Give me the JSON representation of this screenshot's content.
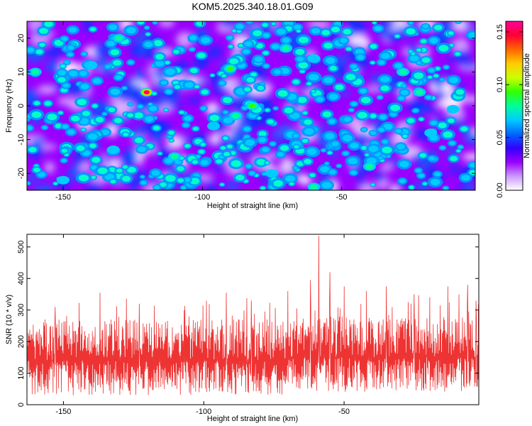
{
  "title": "KOM5.2025.340.18.01.G09",
  "chart_data": [
    {
      "type": "heatmap",
      "xlabel": "Height of straight line (km)",
      "ylabel": "Frequency (Hz)",
      "xlim": [
        -163,
        -2
      ],
      "ylim": [
        -25,
        25
      ],
      "xticks": [
        -150,
        -100,
        -50
      ],
      "yticks": [
        -20,
        -10,
        0,
        10,
        20
      ],
      "colorbar": {
        "label": "Normalized spectral amplitude",
        "range": [
          0,
          0.16
        ],
        "ticks": [
          "0.00",
          "0.05",
          "0.10",
          "0.15"
        ],
        "colors": [
          "#ffffff",
          "#cc99ff",
          "#9900ff",
          "#3300ff",
          "#0066ff",
          "#00ccff",
          "#00ff99",
          "#33ff00",
          "#ccff00",
          "#ffcc00",
          "#ff6600",
          "#ff0033",
          "#ff0099"
        ]
      },
      "background_value": 0.03,
      "hotspots": [
        {
          "x": -120,
          "y": 4,
          "v": 0.16
        },
        {
          "x": -130,
          "y": 20,
          "v": 0.08
        },
        {
          "x": -160,
          "y": 10,
          "v": 0.08
        },
        {
          "x": -140,
          "y": 12,
          "v": 0.07
        },
        {
          "x": -90,
          "y": 11,
          "v": 0.09
        },
        {
          "x": -82,
          "y": 0,
          "v": 0.09
        },
        {
          "x": -88,
          "y": -3,
          "v": 0.08
        },
        {
          "x": -96,
          "y": -6,
          "v": 0.07
        },
        {
          "x": -70,
          "y": 17,
          "v": 0.08
        },
        {
          "x": -60,
          "y": 14,
          "v": 0.07
        },
        {
          "x": -28,
          "y": 10,
          "v": 0.08
        },
        {
          "x": -22,
          "y": 4,
          "v": 0.08
        },
        {
          "x": -10,
          "y": -1,
          "v": 0.07
        },
        {
          "x": -110,
          "y": -15,
          "v": 0.08
        },
        {
          "x": -132,
          "y": -13,
          "v": 0.07
        },
        {
          "x": -60,
          "y": -24,
          "v": 0.08
        },
        {
          "x": -75,
          "y": -20,
          "v": 0.07
        },
        {
          "x": -40,
          "y": -18,
          "v": 0.08
        },
        {
          "x": -150,
          "y": -22,
          "v": 0.07
        },
        {
          "x": -18,
          "y": -8,
          "v": 0.07
        }
      ]
    },
    {
      "type": "line",
      "xlabel": "Height of straight line (km)",
      "ylabel": "SNR (10 * v/v)",
      "xlim": [
        -163,
        -2
      ],
      "ylim": [
        0,
        540
      ],
      "xticks": [
        -150,
        -100,
        -50
      ],
      "yticks": [
        0,
        100,
        200,
        300,
        400,
        500
      ],
      "color": "#ee3333",
      "baseline": 140,
      "spikes": [
        {
          "x": -163,
          "y": 360
        },
        {
          "x": -153,
          "y": 310
        },
        {
          "x": -137,
          "y": 355
        },
        {
          "x": -123,
          "y": 320
        },
        {
          "x": -107,
          "y": 300
        },
        {
          "x": -92,
          "y": 355
        },
        {
          "x": -83,
          "y": 330
        },
        {
          "x": -70,
          "y": 360
        },
        {
          "x": -62,
          "y": 395
        },
        {
          "x": -59,
          "y": 535
        },
        {
          "x": -55,
          "y": 420
        },
        {
          "x": -50,
          "y": 375
        },
        {
          "x": -42,
          "y": 360
        },
        {
          "x": -35,
          "y": 375
        },
        {
          "x": -25,
          "y": 350
        },
        {
          "x": -13,
          "y": 375
        },
        {
          "x": -6,
          "y": 380
        },
        {
          "x": -3,
          "y": 330
        }
      ]
    }
  ]
}
